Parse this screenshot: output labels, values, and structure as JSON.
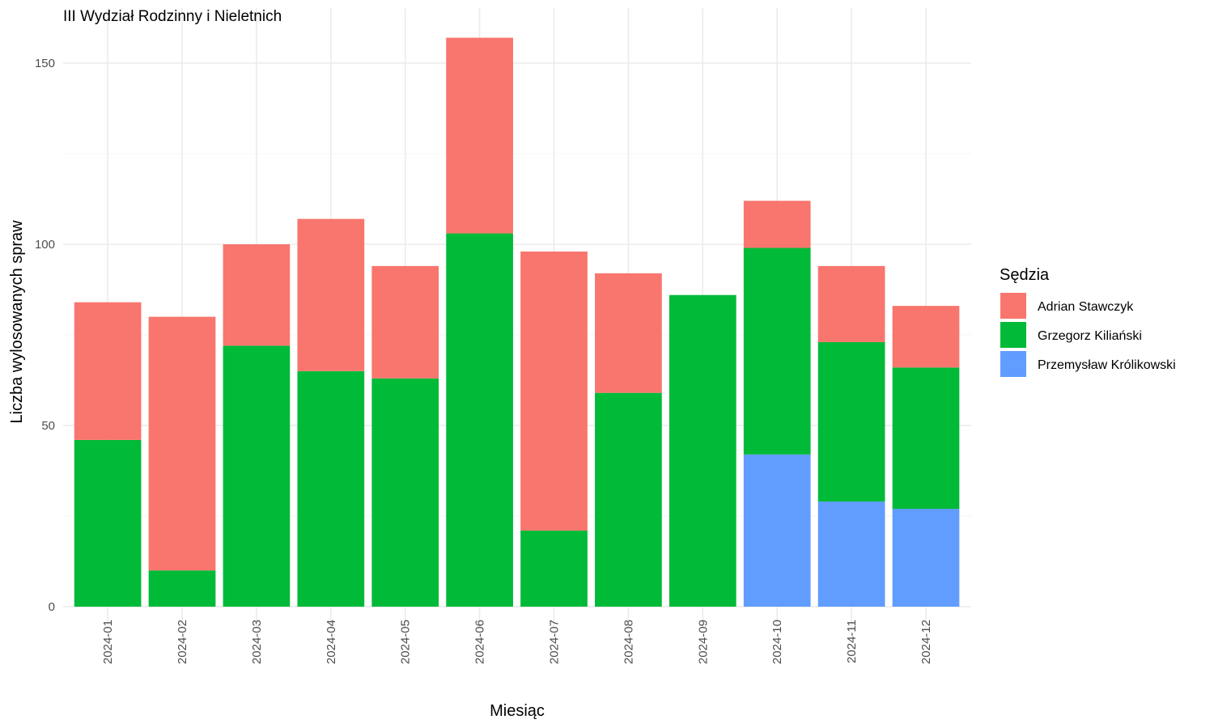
{
  "chart_data": {
    "type": "bar",
    "stacked": true,
    "title": "III Wydział Rodzinny i Nieletnich",
    "xlabel": "Miesiąc",
    "ylabel": "Liczba wylosowanych spraw",
    "ylim": [
      0,
      160
    ],
    "yticks": [
      0,
      50,
      100,
      150
    ],
    "grid": true,
    "legend": {
      "title": "Sędzia",
      "position": "right"
    },
    "categories": [
      "2024-01",
      "2024-02",
      "2024-03",
      "2024-04",
      "2024-05",
      "2024-06",
      "2024-07",
      "2024-08",
      "2024-09",
      "2024-10",
      "2024-11",
      "2024-12"
    ],
    "series": [
      {
        "name": "Przemysław Królikowski",
        "color": "#619CFF",
        "values": [
          0,
          0,
          0,
          0,
          0,
          0,
          0,
          0,
          0,
          42,
          29,
          27
        ]
      },
      {
        "name": "Grzegorz Kiliański",
        "color": "#00BA38",
        "values": [
          46,
          10,
          72,
          65,
          63,
          103,
          21,
          59,
          86,
          57,
          44,
          39
        ]
      },
      {
        "name": "Adrian Stawczyk",
        "color": "#F8766D",
        "values": [
          38,
          70,
          28,
          42,
          31,
          54,
          77,
          33,
          0,
          13,
          21,
          17
        ]
      }
    ],
    "legend_order": [
      "Adrian Stawczyk",
      "Grzegorz Kiliański",
      "Przemysław Królikowski"
    ]
  }
}
